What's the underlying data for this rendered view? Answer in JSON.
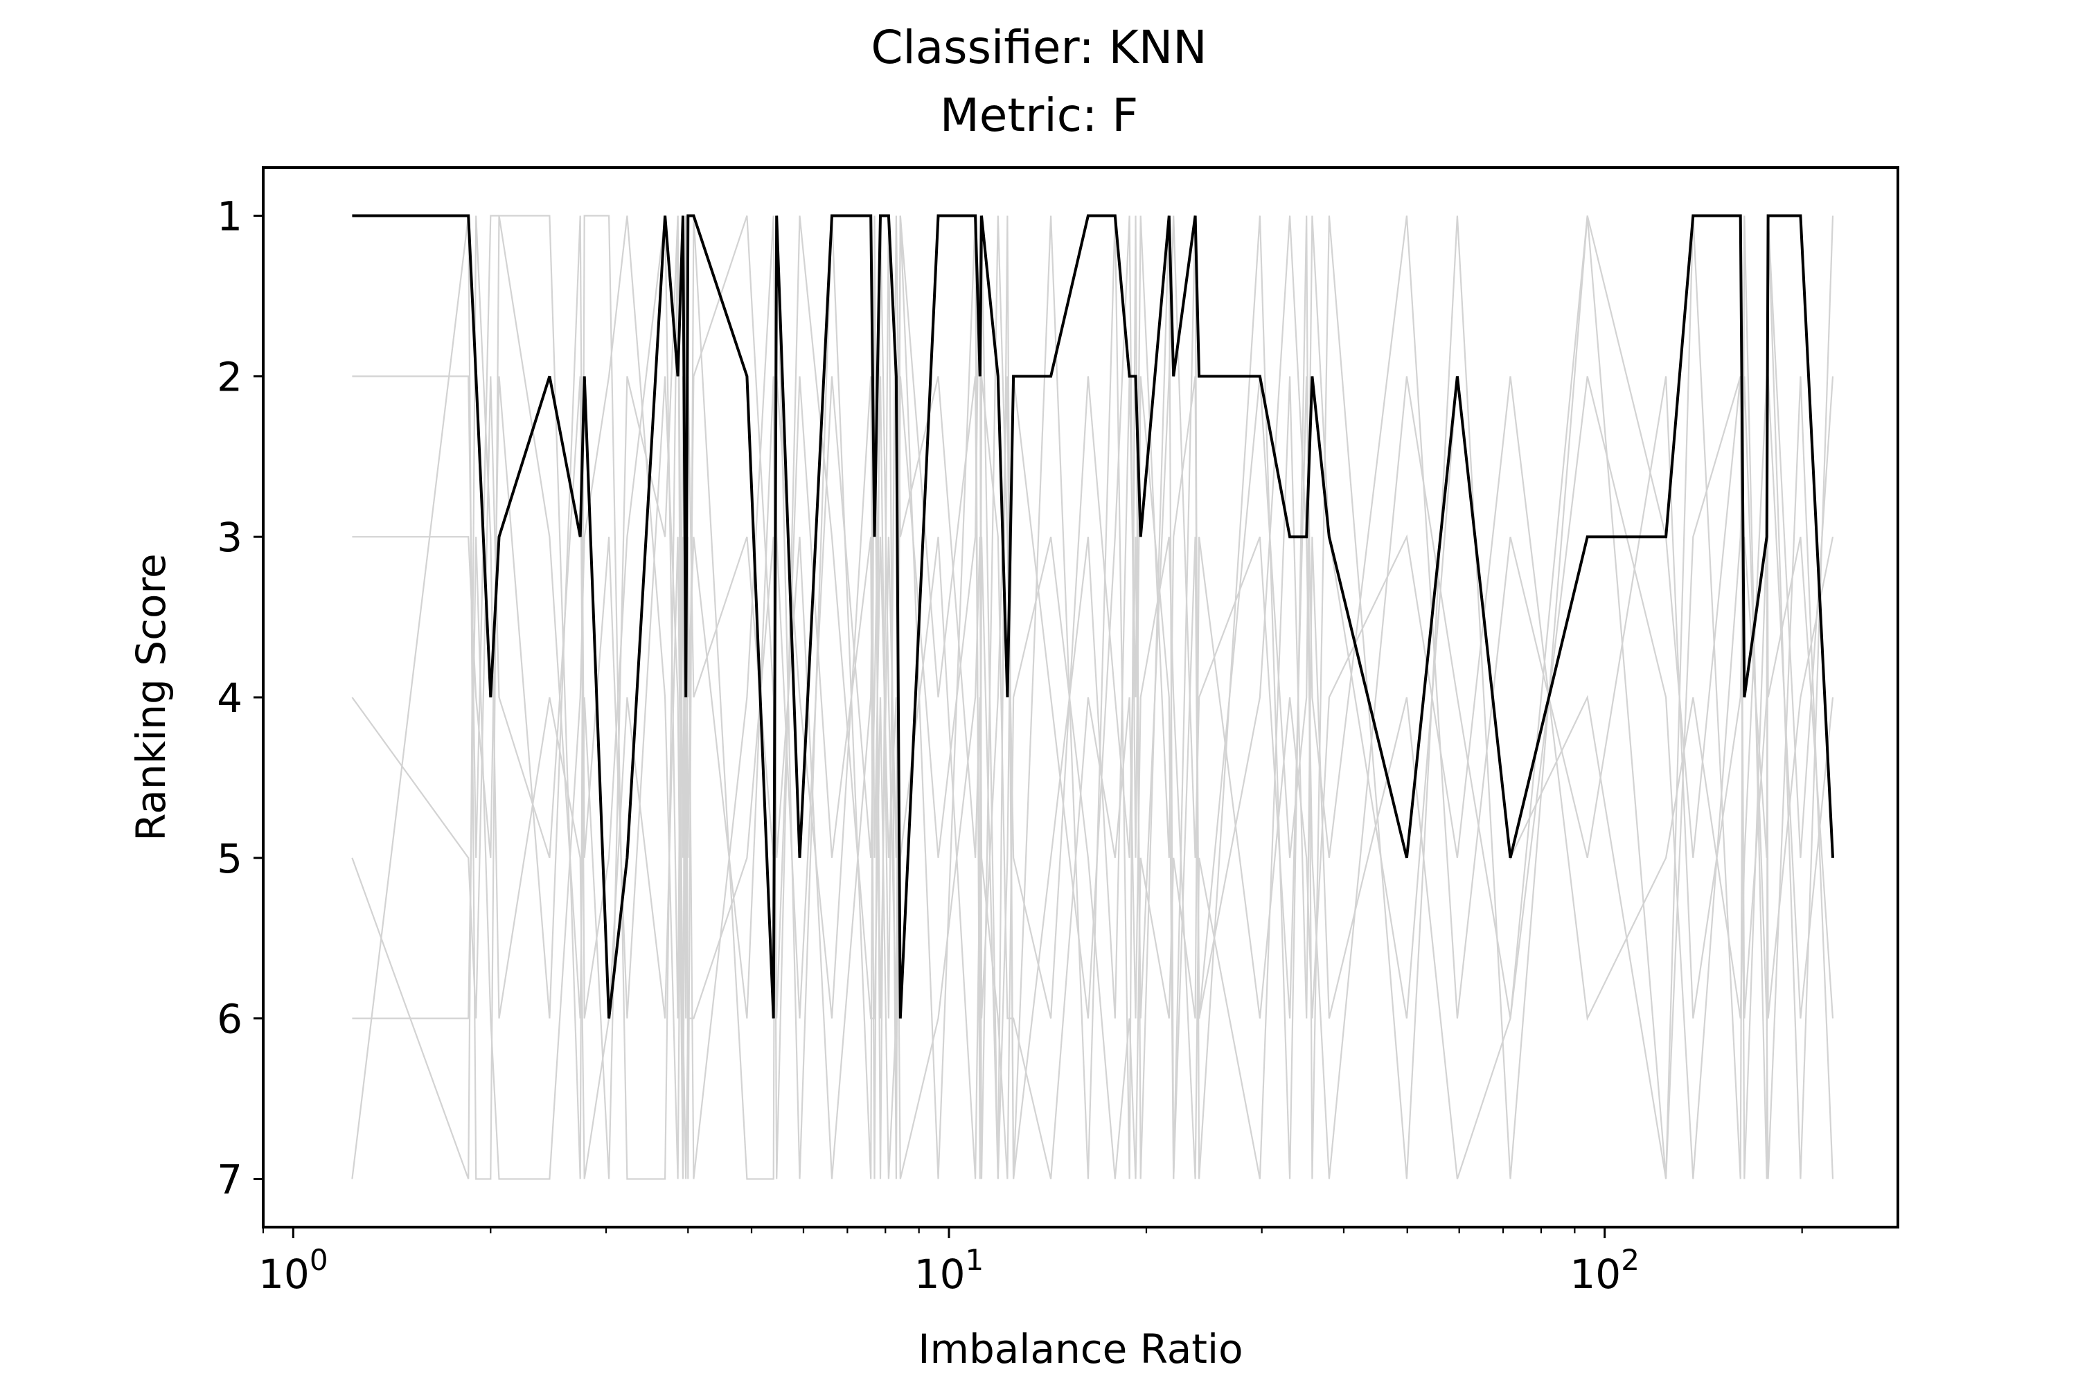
{
  "chart_data": {
    "type": "line",
    "title": "Classifier: KNN",
    "subtitle": "Metric: F",
    "xlabel": "Imbalance Ratio",
    "ylabel": "Ranking Score",
    "xscale": "log",
    "xlim": [
      0.9,
      280
    ],
    "ylim": [
      7.3,
      0.7
    ],
    "y_inverted": true,
    "x_ticks": [
      {
        "value": 1,
        "label": "10^0"
      },
      {
        "value": 10,
        "label": "10^1"
      },
      {
        "value": 100,
        "label": "10^2"
      }
    ],
    "y_ticks": [
      1,
      2,
      3,
      4,
      5,
      6,
      7
    ],
    "grid": false,
    "legend": "none",
    "highlight_color": "#000000",
    "background_color": "#d3d3d3",
    "x": [
      1.23,
      1.85,
      1.9,
      2.0,
      2.06,
      2.46,
      2.74,
      2.78,
      3.03,
      3.23,
      3.69,
      3.86,
      3.93,
      3.97,
      4.0,
      4.08,
      4.92,
      5.4,
      5.46,
      5.92,
      6.63,
      7.6,
      7.7,
      7.86,
      8.09,
      8.31,
      8.43,
      9.63,
      10.97,
      11.15,
      11.21,
      11.88,
      12.28,
      12.54,
      14.3,
      16.3,
      17.92,
      18.85,
      19.26,
      19.6,
      21.66,
      22.0,
      23.75,
      24.07,
      29.8,
      33.1,
      35.1,
      35.8,
      38.0,
      49.9,
      59.6,
      71.8,
      94.1,
      124.0,
      136.4,
      161.1,
      163.3,
      176.7,
      177.5,
      198.9,
      222.8
    ],
    "series": [
      {
        "values": [
          1,
          1,
          2,
          4,
          3,
          2,
          3,
          2,
          6,
          5,
          1,
          2,
          1,
          4,
          1,
          1,
          2,
          6,
          1,
          5,
          1,
          1,
          3,
          1,
          1,
          2,
          6,
          1,
          1,
          2,
          1,
          2,
          4,
          2,
          2,
          1,
          1,
          2,
          2,
          3,
          1,
          2,
          1,
          2,
          2,
          3,
          3,
          2,
          3,
          5,
          2,
          5,
          3,
          3,
          1,
          1,
          4,
          3,
          1,
          1,
          5
        ]
      },
      {
        "values": [
          7,
          1,
          7,
          7,
          1,
          1,
          7,
          1,
          1,
          7,
          7,
          1,
          7,
          1,
          7,
          1,
          7,
          7,
          1,
          7,
          1,
          7,
          1,
          7,
          1,
          7,
          1,
          7,
          1,
          7,
          1,
          7,
          1,
          7,
          1,
          7,
          1,
          7,
          1,
          7,
          1,
          7,
          1,
          7,
          1,
          7,
          1,
          7,
          1,
          7,
          1,
          7,
          1,
          7,
          1,
          7,
          1,
          7,
          1,
          7,
          1
        ]
      },
      {
        "values": [
          2,
          2,
          5,
          1,
          1,
          3,
          6,
          4,
          7,
          2,
          3,
          1,
          5,
          2,
          4,
          3,
          6,
          2,
          5,
          3,
          7,
          4,
          2,
          6,
          3,
          5,
          1,
          4,
          2,
          6,
          3,
          7,
          5,
          2,
          4,
          6,
          3,
          1,
          5,
          2,
          4,
          7,
          3,
          6,
          2,
          5,
          4,
          1,
          3,
          6,
          2,
          5,
          4,
          7,
          3,
          2,
          6,
          4,
          1,
          5,
          2
        ]
      },
      {
        "values": [
          3,
          3,
          4,
          5,
          2,
          6,
          1,
          5,
          3,
          6,
          2,
          4,
          7,
          3,
          5,
          2,
          1,
          4,
          6,
          2,
          5,
          3,
          7,
          1,
          4,
          6,
          2,
          5,
          3,
          1,
          6,
          4,
          2,
          7,
          5,
          3,
          6,
          2,
          4,
          1,
          5,
          3,
          2,
          6,
          4,
          1,
          3,
          5,
          7,
          2,
          4,
          6,
          1,
          3,
          5,
          2,
          7,
          3,
          6,
          4,
          3
        ]
      },
      {
        "values": [
          4,
          5,
          6,
          2,
          4,
          5,
          2,
          6,
          5,
          3,
          1,
          6,
          2,
          5,
          3,
          7,
          4,
          1,
          3,
          6,
          2,
          5,
          4,
          2,
          6,
          1,
          3,
          2,
          5,
          4,
          7,
          1,
          3,
          5,
          6,
          2,
          4,
          5,
          3,
          6,
          2,
          1,
          5,
          4,
          3,
          6,
          2,
          4,
          5,
          1,
          6,
          3,
          5,
          2,
          6,
          4,
          3,
          5,
          2,
          6,
          4
        ]
      },
      {
        "values": [
          6,
          6,
          3,
          6,
          7,
          7,
          4,
          3,
          2,
          1,
          4,
          7,
          3,
          6,
          2,
          4,
          3,
          5,
          2,
          4,
          6,
          2,
          5,
          3,
          5,
          4,
          7,
          6,
          4,
          3,
          5,
          6,
          7,
          4,
          3,
          5,
          7,
          6,
          7,
          5,
          6,
          5,
          6,
          3,
          6,
          4,
          5,
          6,
          4,
          3,
          5,
          2,
          6,
          5,
          4,
          6,
          5,
          2,
          4,
          3,
          6
        ]
      },
      {
        "values": [
          5,
          7,
          1,
          3,
          6,
          4,
          5,
          7,
          6,
          4,
          6,
          3,
          6,
          7,
          6,
          6,
          5,
          3,
          7,
          1,
          3,
          6,
          6,
          4,
          7,
          6,
          5,
          3,
          7,
          5,
          2,
          3,
          6,
          6,
          7,
          4,
          5,
          4,
          6,
          4,
          3,
          4,
          7,
          5,
          7,
          2,
          6,
          3,
          6,
          4,
          7,
          6,
          2,
          4,
          7,
          3,
          2,
          6,
          7,
          2,
          7
        ]
      }
    ]
  }
}
